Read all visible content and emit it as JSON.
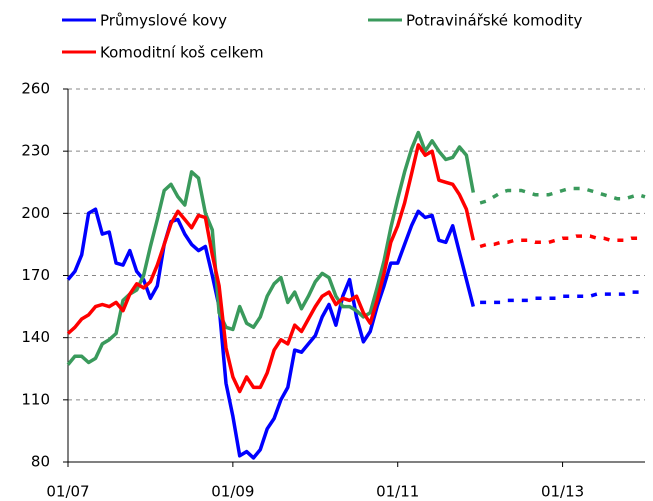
{
  "chart_data": {
    "type": "line",
    "categories": [
      "01/07",
      null,
      null,
      null,
      null,
      null,
      null,
      null,
      null,
      null,
      null,
      null,
      null,
      null,
      null,
      null,
      null,
      null,
      null,
      null,
      null,
      null,
      null,
      null,
      "01/09",
      null,
      null,
      null,
      null,
      null,
      null,
      null,
      null,
      null,
      null,
      null,
      null,
      null,
      null,
      null,
      null,
      null,
      null,
      null,
      null,
      null,
      null,
      null,
      "01/11",
      null,
      null,
      null,
      null,
      null,
      null,
      null,
      null,
      null,
      null,
      null,
      null,
      null,
      null,
      null,
      null,
      null,
      null,
      null,
      null,
      null,
      null,
      null,
      "01/13",
      null,
      null,
      null,
      null,
      null,
      null,
      null,
      null,
      null,
      null,
      null,
      null
    ],
    "dashed_from": 60,
    "series": [
      {
        "name": "Průmyslové kovy",
        "color": "#0000ff",
        "values": [
          168,
          172,
          180,
          200,
          202,
          190,
          191,
          176,
          175,
          182,
          172,
          168,
          159,
          165,
          185,
          196,
          197,
          190,
          185,
          182,
          184,
          170,
          155,
          118,
          102,
          83,
          85,
          82,
          86,
          96,
          101,
          110,
          116,
          134,
          133,
          137,
          141,
          150,
          156,
          146,
          160,
          168,
          150,
          138,
          143,
          155,
          165,
          176,
          176,
          185,
          194,
          201,
          198,
          199,
          187,
          186,
          194,
          181,
          168,
          155,
          157,
          157,
          157,
          157,
          158,
          158,
          158,
          158,
          159,
          159,
          159,
          159,
          160,
          160,
          160,
          160,
          160,
          161,
          161,
          161,
          161,
          161,
          162,
          162,
          162
        ]
      },
      {
        "name": "Potravinářské komodity",
        "color": "#3a9a5c",
        "values": [
          127,
          131,
          131,
          128,
          130,
          137,
          139,
          142,
          158,
          161,
          163,
          170,
          184,
          197,
          211,
          214,
          208,
          204,
          220,
          217,
          200,
          192,
          152,
          145,
          144,
          155,
          147,
          145,
          150,
          160,
          166,
          169,
          157,
          162,
          154,
          160,
          167,
          171,
          169,
          160,
          155,
          155,
          153,
          150,
          152,
          164,
          177,
          193,
          207,
          220,
          231,
          239,
          230,
          235,
          230,
          226,
          227,
          232,
          228,
          210,
          205,
          206,
          208,
          210,
          211,
          211,
          211,
          210,
          209,
          209,
          209,
          210,
          211,
          212,
          212,
          212,
          211,
          210,
          209,
          208,
          207,
          207,
          208,
          209,
          208
        ]
      },
      {
        "name": "Komoditní koš celkem",
        "color": "#ff0000",
        "values": [
          142,
          145,
          149,
          151,
          155,
          156,
          155,
          157,
          153,
          161,
          166,
          164,
          167,
          175,
          185,
          195,
          201,
          197,
          193,
          199,
          198,
          180,
          165,
          135,
          121,
          114,
          121,
          116,
          116,
          123,
          134,
          139,
          137,
          146,
          143,
          149,
          155,
          160,
          162,
          156,
          159,
          158,
          160,
          152,
          147,
          158,
          171,
          186,
          194,
          205,
          219,
          233,
          228,
          230,
          216,
          215,
          214,
          209,
          202,
          187,
          184,
          185,
          185,
          186,
          186,
          187,
          187,
          187,
          186,
          186,
          186,
          187,
          188,
          188,
          189,
          189,
          189,
          188,
          188,
          187,
          187,
          187,
          188,
          188,
          188
        ]
      }
    ],
    "ylim": [
      80,
      260
    ],
    "yticks": [
      80,
      110,
      140,
      170,
      200,
      230,
      260
    ],
    "grid": true
  }
}
